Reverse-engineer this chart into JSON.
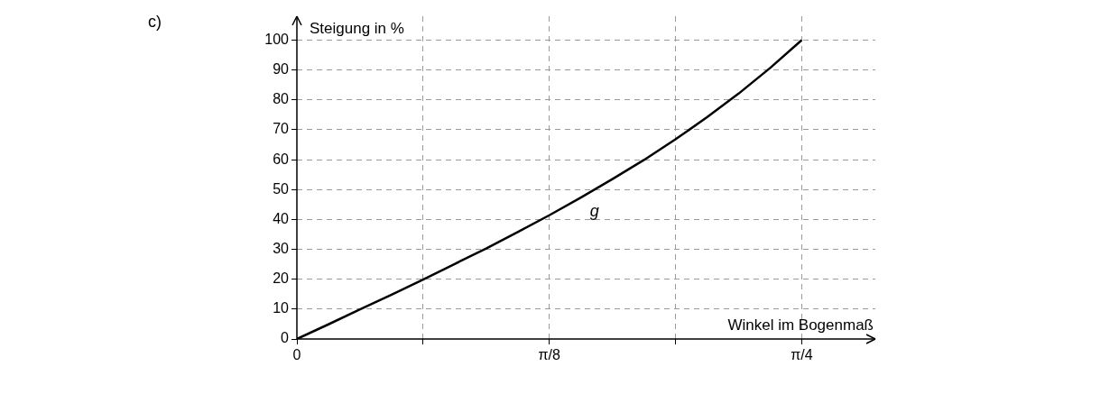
{
  "chart_data": {
    "type": "line",
    "xlabel": "Winkel im Bogenmaß",
    "ylabel": "Steigung in %",
    "annotations": [
      "c)"
    ],
    "x": [
      0,
      0.0491,
      0.0982,
      0.1473,
      0.1963,
      0.2454,
      0.2945,
      0.3436,
      0.3927,
      0.4418,
      0.4909,
      0.54,
      0.589,
      0.6381,
      0.6872,
      0.7363,
      0.7854
    ],
    "series": [
      {
        "name": "g",
        "color": "#000000",
        "values": [
          0,
          4.9,
          9.9,
          14.8,
          19.9,
          25.1,
          30.3,
          35.8,
          41.4,
          47.3,
          53.5,
          59.9,
          66.8,
          74.2,
          82.1,
          90.7,
          100
        ]
      }
    ],
    "xlim": [
      0,
      0.9
    ],
    "ylim": [
      0,
      108
    ],
    "xticks": [
      {
        "value": 0,
        "label": "0"
      },
      {
        "value": 0.19635,
        "label": null
      },
      {
        "value": 0.3927,
        "label": "π/8"
      },
      {
        "value": 0.589,
        "label": null
      },
      {
        "value": 0.7854,
        "label": "π/4"
      }
    ],
    "yticks": [
      0,
      10,
      20,
      30,
      40,
      50,
      60,
      70,
      80,
      90,
      100
    ],
    "grid": true,
    "legend": false,
    "marker": "none",
    "line_style": "solid"
  }
}
